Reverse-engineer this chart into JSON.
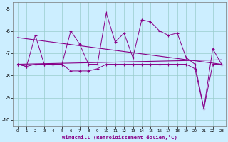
{
  "x": [
    0,
    1,
    2,
    3,
    4,
    5,
    6,
    7,
    8,
    9,
    10,
    11,
    12,
    13,
    14,
    15,
    16,
    17,
    18,
    19,
    20,
    21,
    22,
    23
  ],
  "y_main": [
    -7.5,
    -7.6,
    -6.2,
    -7.5,
    -7.5,
    -7.5,
    -6.0,
    -6.6,
    -7.5,
    -7.5,
    -5.2,
    -6.5,
    -6.1,
    -7.2,
    -5.5,
    -5.6,
    -6.0,
    -6.2,
    -6.1,
    -7.2,
    -7.5,
    -9.5,
    -6.8,
    -7.5
  ],
  "y_low": [
    -7.5,
    -7.6,
    -7.5,
    -7.5,
    -7.5,
    -7.5,
    -7.8,
    -7.8,
    -7.8,
    -7.7,
    -7.5,
    -7.5,
    -7.5,
    -7.5,
    -7.5,
    -7.5,
    -7.5,
    -7.5,
    -7.5,
    -7.5,
    -7.7,
    -9.5,
    -7.5,
    -7.5
  ],
  "trend1_x": [
    0,
    23
  ],
  "trend1_y": [
    -6.3,
    -7.5
  ],
  "trend2_x": [
    0,
    23
  ],
  "trend2_y": [
    -7.5,
    -7.3
  ],
  "line_color": "#880088",
  "bg_color": "#cceeff",
  "grid_color": "#99cccc",
  "xlabel": "Windchill (Refroidissement éolien,°C)",
  "ylim": [
    -10.3,
    -4.7
  ],
  "xlim": [
    -0.5,
    23.5
  ],
  "yticks": [
    -10,
    -9,
    -8,
    -7,
    -6,
    -5
  ],
  "xticks": [
    0,
    1,
    2,
    3,
    4,
    5,
    6,
    7,
    8,
    9,
    10,
    11,
    12,
    13,
    14,
    15,
    16,
    17,
    18,
    19,
    20,
    21,
    22,
    23
  ]
}
